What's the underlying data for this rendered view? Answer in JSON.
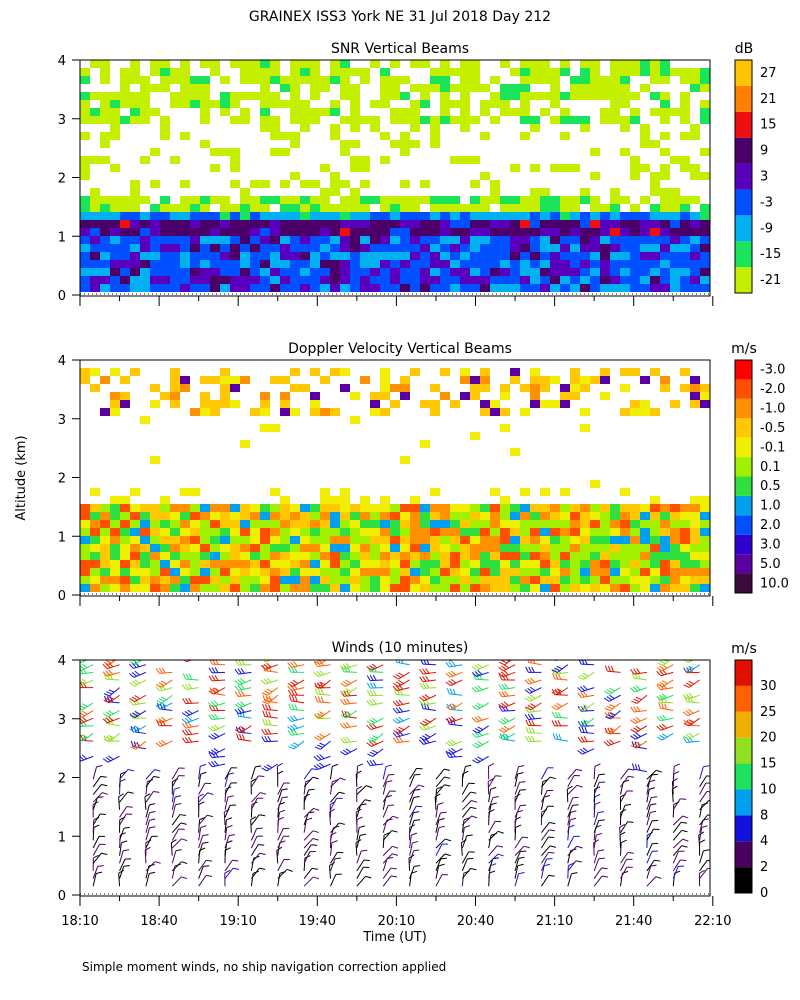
{
  "figure": {
    "title": "GRAINEX ISS3 York NE  31 Jul 2018 Day 212",
    "ylabel": "Altitude (km)",
    "xlabel": "Time (UT)",
    "footnote": "Simple moment winds, no ship navigation correction applied",
    "x_ticks": [
      "18:10",
      "18:40",
      "19:10",
      "19:40",
      "20:10",
      "20:40",
      "21:10",
      "21:40",
      "22:10"
    ],
    "y_ticks": [
      "0",
      "1",
      "2",
      "3",
      "4"
    ]
  },
  "chart_data": [
    {
      "type": "heatmap",
      "title": "SNR Vertical Beams",
      "unit": "dB",
      "xlim": [
        "18:10",
        "22:10"
      ],
      "ylim": [
        0,
        4
      ],
      "x": [
        "18:10",
        "18:40",
        "19:10",
        "19:40",
        "20:10",
        "20:40",
        "21:10",
        "21:40",
        "22:10"
      ],
      "scale": [
        "-21",
        "-15",
        "-9",
        "-3",
        "3",
        "9",
        "15",
        "21",
        "27"
      ],
      "colors": [
        "#c4f000",
        "#19e45a",
        "#00b0f0",
        "#0050ff",
        "#5a00bc",
        "#4a0068",
        "#ee1010",
        "#ff8000",
        "#ffc400"
      ],
      "features": [
        {
          "altitude_km": [
            0.1,
            1.0
          ],
          "value_db": [
            -3,
            3
          ]
        },
        {
          "altitude_km": [
            1.0,
            1.25
          ],
          "value_db": [
            3,
            15
          ]
        },
        {
          "altitude_km": [
            1.25,
            1.4
          ],
          "value_db": [
            -9,
            -3
          ]
        },
        {
          "altitude_km": [
            1.4,
            1.7
          ],
          "value_db": [
            -21,
            -15
          ]
        },
        {
          "altitude_km": [
            2.9,
            4.0
          ],
          "value_db": [
            -21,
            -9
          ]
        }
      ]
    },
    {
      "type": "heatmap",
      "title": "Doppler Velocity Vertical Beams",
      "unit": "m/s",
      "xlim": [
        "18:10",
        "22:10"
      ],
      "ylim": [
        0,
        4
      ],
      "x": [
        "18:10",
        "18:40",
        "19:10",
        "19:40",
        "20:10",
        "20:40",
        "21:10",
        "21:40",
        "22:10"
      ],
      "scale": [
        "10.0",
        "5.0",
        "3.0",
        "2.0",
        "1.0",
        "0.5",
        "0.1",
        "-0.1",
        "-0.5",
        "-1.0",
        "-2.0",
        "-3.0"
      ],
      "colors": [
        "#3a0a3a",
        "#5a00a0",
        "#3000d0",
        "#0050ff",
        "#00a0f0",
        "#30e040",
        "#a0f000",
        "#f0f000",
        "#ffc800",
        "#ff9000",
        "#ff5000",
        "#ff0000"
      ],
      "features": [
        {
          "altitude_km": [
            0.1,
            1.5
          ],
          "value_ms": [
            -2.0,
            0.5
          ]
        },
        {
          "altitude_km": [
            3.0,
            3.9
          ],
          "value_ms": [
            -0.5,
            0.1
          ]
        }
      ]
    },
    {
      "type": "scatter",
      "title": "Winds (10 minutes)",
      "unit": "m/s",
      "xlim": [
        "18:10",
        "22:10"
      ],
      "ylim": [
        0,
        4
      ],
      "x": [
        "18:10",
        "18:40",
        "19:10",
        "19:40",
        "20:10",
        "20:40",
        "21:10",
        "21:40",
        "22:10"
      ],
      "scale": [
        "0",
        "2",
        "4",
        "8",
        "10",
        "15",
        "20",
        "25",
        "30"
      ],
      "colors": [
        "#000000",
        "#4a0060",
        "#1010e0",
        "#00a0f0",
        "#20e060",
        "#90e020",
        "#f0b000",
        "#ff6000",
        "#e01000"
      ],
      "features": [
        {
          "altitude_km": [
            0.1,
            2.0
          ],
          "speed_ms": [
            0,
            4
          ]
        },
        {
          "altitude_km": [
            2.5,
            4.1
          ],
          "speed_ms": [
            8,
            30
          ]
        }
      ]
    }
  ]
}
